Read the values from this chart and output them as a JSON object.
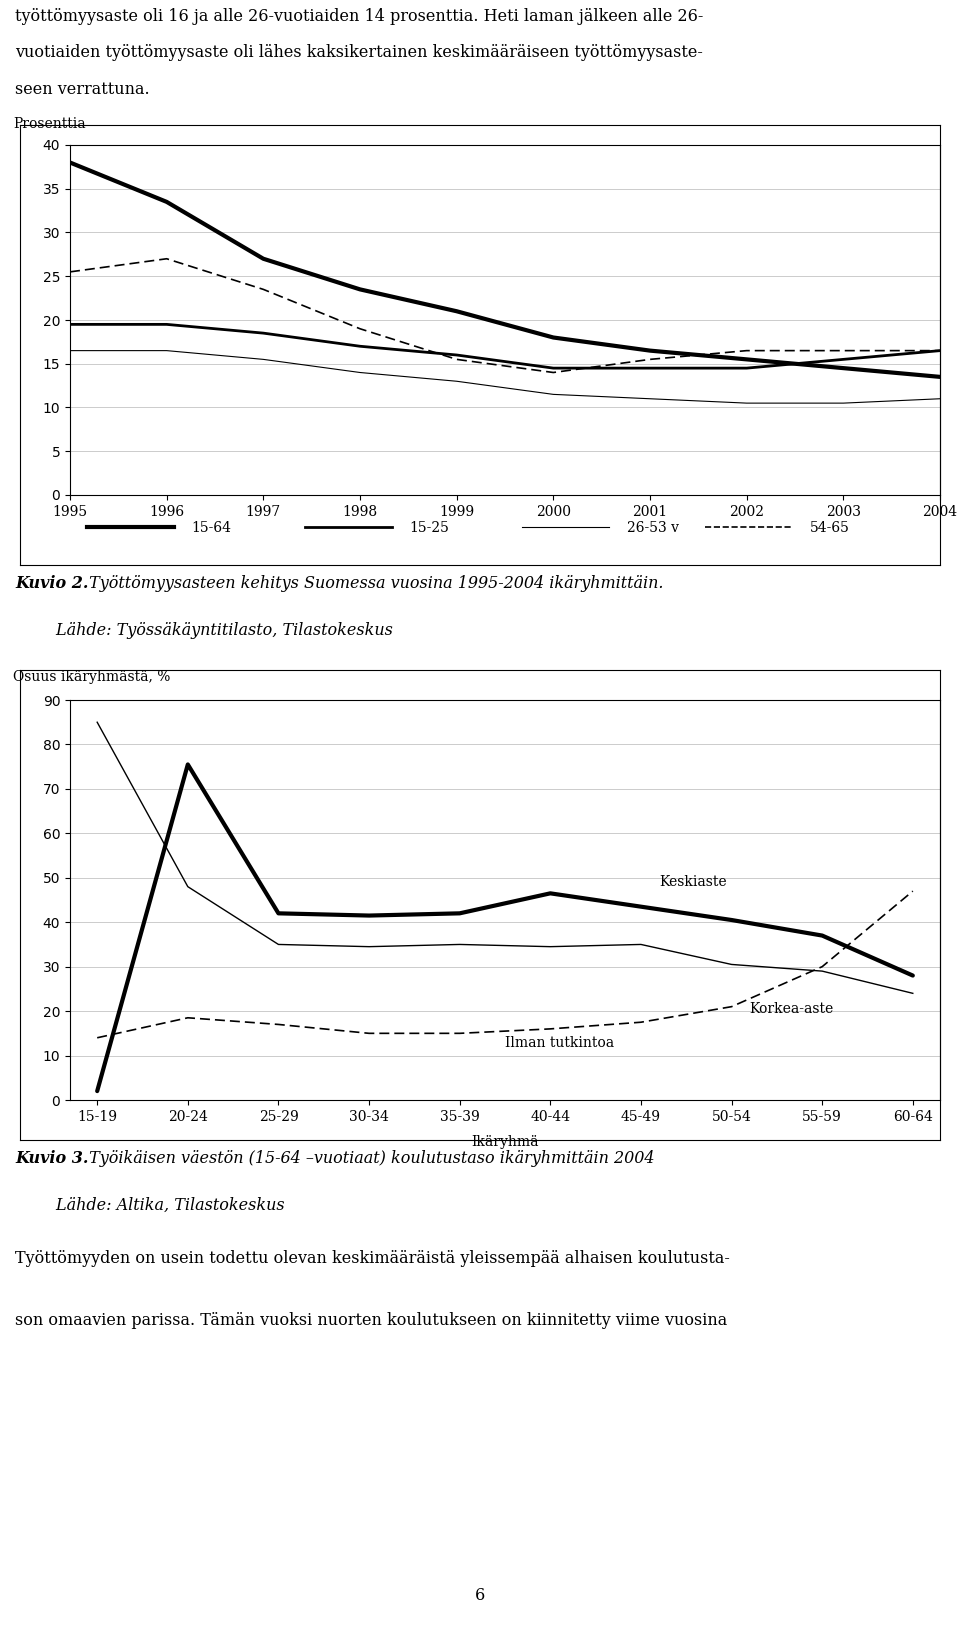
{
  "page_bg": "#ffffff",
  "top_text_line1": "työttömyysaste oli 16 ja alle 26-vuotiaiden 14 prosenttia. Heti laman jälkeen alle 26-",
  "top_text_line2": "vuotiaiden työttömyysaste oli lähes kaksikertainen keskimääräiseen työttömyysaste-",
  "top_text_line3": "seen verrattuna.",
  "chart1_ylabel": "Prosenttia",
  "chart1_years": [
    1995,
    1996,
    1997,
    1998,
    1999,
    2000,
    2001,
    2002,
    2003,
    2004
  ],
  "chart1_15_64": [
    38.0,
    33.5,
    27.0,
    23.5,
    21.0,
    18.0,
    16.5,
    15.5,
    14.5,
    13.5
  ],
  "chart1_15_25": [
    19.5,
    19.5,
    18.5,
    17.0,
    16.0,
    14.5,
    14.5,
    14.5,
    15.5,
    16.5
  ],
  "chart1_26_53": [
    16.5,
    16.5,
    15.5,
    14.0,
    13.0,
    11.5,
    11.0,
    10.5,
    10.5,
    11.0
  ],
  "chart1_54_65": [
    25.5,
    27.0,
    23.5,
    19.0,
    15.5,
    14.0,
    15.5,
    16.5,
    16.5,
    16.5
  ],
  "chart1_ylim": [
    0,
    40
  ],
  "chart1_yticks": [
    0,
    5,
    10,
    15,
    20,
    25,
    30,
    35,
    40
  ],
  "chart1_legend_labels": [
    "15-64",
    "15-25",
    "26-53 v",
    "54-65"
  ],
  "caption2_bold": "Kuvio 2.",
  "caption2_text": " Työttömyysasteen kehitys Suomessa vuosina 1995-2004 ikäryhmittäin.",
  "caption2_line2": "        Lähde: Työssäkäyntitilasto, Tilastokeskus",
  "chart2_ylabel": "Osuus ikäryhmästä, %",
  "chart2_xlabel": "Ikäryhmä",
  "chart2_ages": [
    "15-19",
    "20-24",
    "25-29",
    "30-34",
    "35-39",
    "40-44",
    "45-49",
    "50-54",
    "55-59",
    "60-64"
  ],
  "chart2_ilman": [
    14.0,
    18.5,
    17.0,
    15.0,
    15.0,
    16.0,
    17.5,
    21.0,
    30.0,
    47.0
  ],
  "chart2_keski": [
    2.0,
    75.5,
    42.0,
    41.5,
    42.0,
    46.5,
    43.5,
    40.5,
    37.0,
    28.0
  ],
  "chart2_korkea": [
    85.0,
    48.0,
    35.0,
    34.5,
    35.0,
    34.5,
    35.0,
    30.5,
    29.0,
    24.0
  ],
  "chart2_ylim": [
    0,
    90
  ],
  "chart2_yticks": [
    0,
    10,
    20,
    30,
    40,
    50,
    60,
    70,
    80,
    90
  ],
  "caption3_bold": "Kuvio 3.",
  "caption3_text": " Työikäisen väestön (15-64 –vuotiaat) koulutustaso ikäryhmittäin 2004",
  "caption3_line2": "        Lähde: Altika, Tilastokeskus",
  "bottom_line1": "Työttömyyden on usein todettu olevan keskimääräistä yleissempää alhaisen koulutusta-",
  "bottom_line2": "son omaavien parissa. Tämän vuoksi nuorten koulutukseen on kiinnitetty viime vuosina",
  "page_number": "6"
}
